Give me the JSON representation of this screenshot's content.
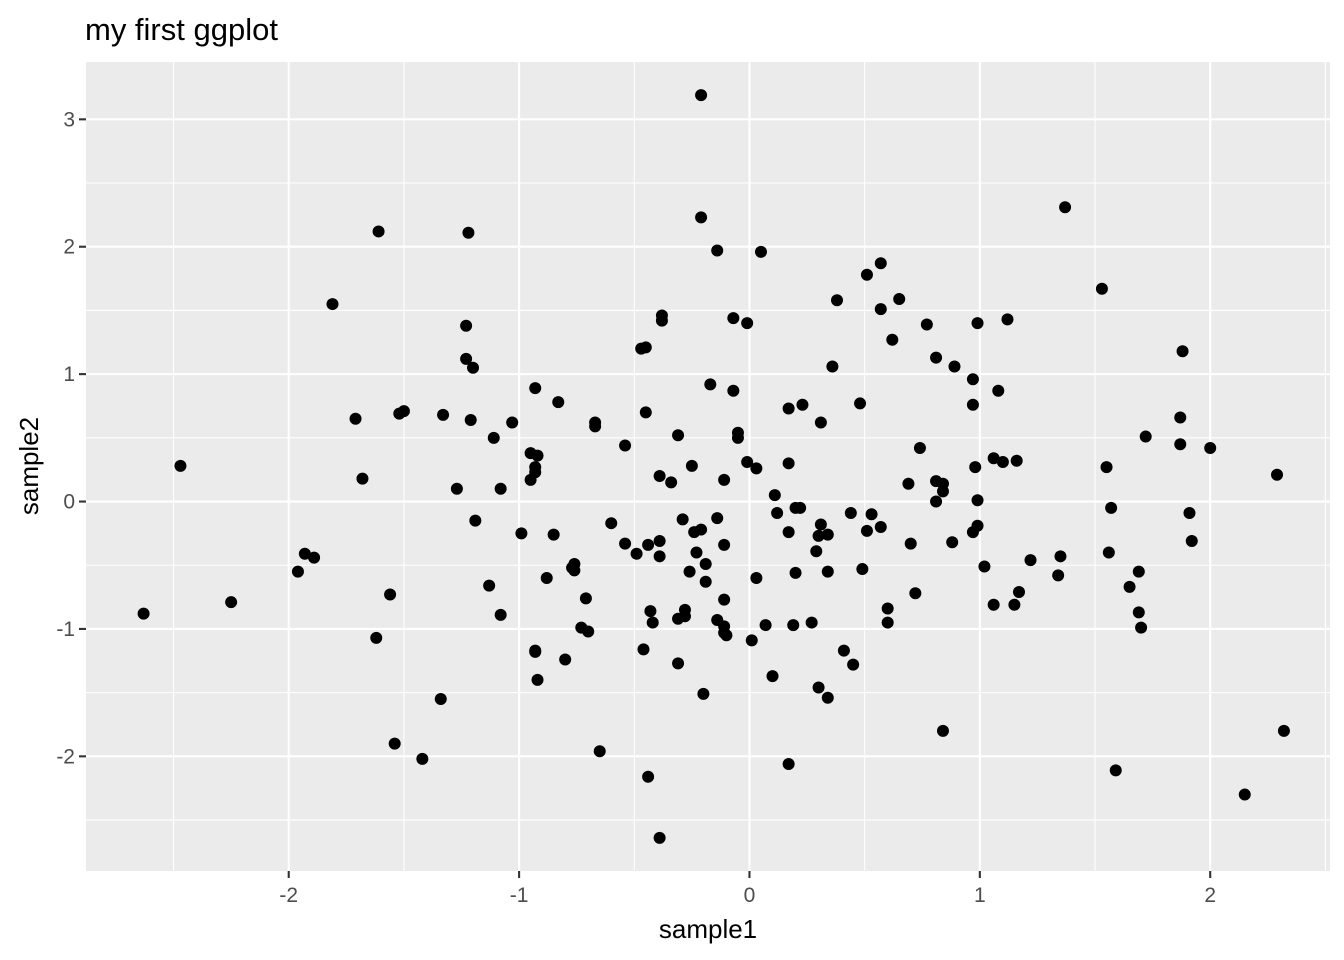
{
  "chart_data": {
    "type": "scatter",
    "title": "my first ggplot",
    "xlabel": "sample1",
    "ylabel": "sample2",
    "xlim": [
      -2.88,
      2.52
    ],
    "ylim": [
      -2.9,
      3.45
    ],
    "x_ticks": [
      -2,
      -1,
      0,
      1,
      2
    ],
    "y_ticks": [
      -2,
      -1,
      0,
      1,
      2,
      3
    ],
    "x_tick_labels": [
      "-2",
      "-1",
      "0",
      "1",
      "2"
    ],
    "y_tick_labels": [
      "-2",
      "-1",
      "0",
      "1",
      "2",
      "3"
    ],
    "x_minor": [
      -2.5,
      -1.5,
      -0.5,
      0.5,
      1.5,
      2.5
    ],
    "y_minor": [
      -2.5,
      -1.5,
      -0.5,
      0.5,
      1.5,
      2.5
    ],
    "grid": true,
    "background": "#ebebeb",
    "point_color": "#000000",
    "points": [
      [
        -0.21,
        3.19
      ],
      [
        -0.21,
        2.23
      ],
      [
        -0.14,
        1.97
      ],
      [
        0.05,
        1.96
      ],
      [
        -1.61,
        2.12
      ],
      [
        -1.22,
        2.11
      ],
      [
        1.37,
        2.31
      ],
      [
        -1.81,
        1.55
      ],
      [
        1.53,
        1.67
      ],
      [
        0.51,
        1.78
      ],
      [
        0.57,
        1.87
      ],
      [
        -0.38,
        1.46
      ],
      [
        -0.38,
        1.42
      ],
      [
        -0.07,
        1.44
      ],
      [
        -0.01,
        1.4
      ],
      [
        0.38,
        1.58
      ],
      [
        0.57,
        1.51
      ],
      [
        0.65,
        1.59
      ],
      [
        1.12,
        1.43
      ],
      [
        0.99,
        1.4
      ],
      [
        0.77,
        1.39
      ],
      [
        -1.23,
        1.38
      ],
      [
        -0.45,
        1.21
      ],
      [
        -0.47,
        1.2
      ],
      [
        0.62,
        1.27
      ],
      [
        -1.23,
        1.12
      ],
      [
        -1.2,
        1.05
      ],
      [
        0.81,
        1.13
      ],
      [
        0.89,
        1.06
      ],
      [
        0.36,
        1.06
      ],
      [
        1.88,
        1.18
      ],
      [
        -0.17,
        0.92
      ],
      [
        -0.07,
        0.87
      ],
      [
        -0.93,
        0.89
      ],
      [
        0.97,
        0.96
      ],
      [
        1.08,
        0.87
      ],
      [
        -0.83,
        0.78
      ],
      [
        -1.71,
        0.65
      ],
      [
        -1.52,
        0.69
      ],
      [
        -1.5,
        0.71
      ],
      [
        -1.33,
        0.68
      ],
      [
        -1.21,
        0.64
      ],
      [
        -1.03,
        0.62
      ],
      [
        -0.45,
        0.7
      ],
      [
        -0.67,
        0.62
      ],
      [
        -0.67,
        0.59
      ],
      [
        0.17,
        0.73
      ],
      [
        0.23,
        0.76
      ],
      [
        0.48,
        0.77
      ],
      [
        0.97,
        0.76
      ],
      [
        1.87,
        0.66
      ],
      [
        0.31,
        0.62
      ],
      [
        -1.11,
        0.5
      ],
      [
        -0.31,
        0.52
      ],
      [
        -0.05,
        0.54
      ],
      [
        -0.05,
        0.5
      ],
      [
        1.72,
        0.51
      ],
      [
        -0.54,
        0.44
      ],
      [
        0.74,
        0.42
      ],
      [
        1.87,
        0.45
      ],
      [
        2.0,
        0.42
      ],
      [
        -0.95,
        0.38
      ],
      [
        -0.92,
        0.36
      ],
      [
        -0.93,
        0.27
      ],
      [
        -0.93,
        0.23
      ],
      [
        -0.95,
        0.17
      ],
      [
        -0.01,
        0.31
      ],
      [
        0.03,
        0.26
      ],
      [
        -0.25,
        0.28
      ],
      [
        0.17,
        0.3
      ],
      [
        1.06,
        0.34
      ],
      [
        1.1,
        0.31
      ],
      [
        1.16,
        0.32
      ],
      [
        0.98,
        0.27
      ],
      [
        1.55,
        0.27
      ],
      [
        -2.47,
        0.28
      ],
      [
        -1.68,
        0.18
      ],
      [
        -0.39,
        0.2
      ],
      [
        -0.34,
        0.15
      ],
      [
        -0.11,
        0.17
      ],
      [
        0.69,
        0.14
      ],
      [
        0.81,
        0.16
      ],
      [
        0.84,
        0.14
      ],
      [
        2.29,
        0.21
      ],
      [
        -1.27,
        0.1
      ],
      [
        -1.08,
        0.1
      ],
      [
        0.84,
        0.08
      ],
      [
        0.11,
        0.05
      ],
      [
        0.81,
        0.0
      ],
      [
        0.99,
        0.01
      ],
      [
        0.2,
        -0.05
      ],
      [
        0.22,
        -0.05
      ],
      [
        1.57,
        -0.05
      ],
      [
        0.12,
        -0.09
      ],
      [
        0.44,
        -0.09
      ],
      [
        0.53,
        -0.1
      ],
      [
        1.91,
        -0.09
      ],
      [
        -1.19,
        -0.15
      ],
      [
        -0.29,
        -0.14
      ],
      [
        -0.14,
        -0.13
      ],
      [
        -0.6,
        -0.17
      ],
      [
        0.17,
        -0.24
      ],
      [
        0.31,
        -0.18
      ],
      [
        0.57,
        -0.2
      ],
      [
        0.51,
        -0.23
      ],
      [
        0.99,
        -0.19
      ],
      [
        0.97,
        -0.24
      ],
      [
        -0.99,
        -0.25
      ],
      [
        -0.85,
        -0.26
      ],
      [
        -0.24,
        -0.24
      ],
      [
        -0.21,
        -0.22
      ],
      [
        0.3,
        -0.27
      ],
      [
        0.34,
        -0.26
      ],
      [
        -0.54,
        -0.33
      ],
      [
        -0.44,
        -0.34
      ],
      [
        -0.39,
        -0.31
      ],
      [
        -0.11,
        -0.34
      ],
      [
        0.7,
        -0.33
      ],
      [
        0.88,
        -0.32
      ],
      [
        1.92,
        -0.31
      ],
      [
        -1.93,
        -0.41
      ],
      [
        -1.89,
        -0.44
      ],
      [
        -0.49,
        -0.41
      ],
      [
        -0.39,
        -0.43
      ],
      [
        -0.23,
        -0.4
      ],
      [
        0.29,
        -0.39
      ],
      [
        1.56,
        -0.4
      ],
      [
        1.22,
        -0.46
      ],
      [
        1.35,
        -0.43
      ],
      [
        -1.96,
        -0.55
      ],
      [
        -0.76,
        -0.49
      ],
      [
        -0.77,
        -0.52
      ],
      [
        -0.76,
        -0.54
      ],
      [
        -0.26,
        -0.55
      ],
      [
        -0.19,
        -0.49
      ],
      [
        0.34,
        -0.55
      ],
      [
        0.49,
        -0.53
      ],
      [
        1.02,
        -0.51
      ],
      [
        1.69,
        -0.55
      ],
      [
        -0.88,
        -0.6
      ],
      [
        -0.19,
        -0.63
      ],
      [
        0.03,
        -0.6
      ],
      [
        0.2,
        -0.56
      ],
      [
        1.34,
        -0.58
      ],
      [
        -1.13,
        -0.66
      ],
      [
        1.65,
        -0.67
      ],
      [
        -1.56,
        -0.73
      ],
      [
        0.72,
        -0.72
      ],
      [
        1.17,
        -0.71
      ],
      [
        -0.71,
        -0.76
      ],
      [
        -0.11,
        -0.77
      ],
      [
        1.06,
        -0.81
      ],
      [
        1.15,
        -0.81
      ],
      [
        -0.43,
        -0.86
      ],
      [
        -0.28,
        -0.85
      ],
      [
        0.6,
        -0.84
      ],
      [
        1.69,
        -0.87
      ],
      [
        -1.08,
        -0.89
      ],
      [
        -0.28,
        -0.9
      ],
      [
        -0.31,
        -0.92
      ],
      [
        -0.14,
        -0.93
      ],
      [
        -0.42,
        -0.95
      ],
      [
        -0.11,
        -0.98
      ],
      [
        0.07,
        -0.97
      ],
      [
        0.19,
        -0.97
      ],
      [
        0.27,
        -0.95
      ],
      [
        0.6,
        -0.95
      ],
      [
        1.7,
        -0.99
      ],
      [
        -0.73,
        -0.99
      ],
      [
        -0.7,
        -1.02
      ],
      [
        -0.11,
        -1.03
      ],
      [
        -0.1,
        -1.05
      ],
      [
        0.01,
        -1.09
      ],
      [
        -1.62,
        -1.07
      ],
      [
        -0.93,
        -1.18
      ],
      [
        -0.93,
        -1.17
      ],
      [
        -0.46,
        -1.16
      ],
      [
        0.41,
        -1.17
      ],
      [
        -0.8,
        -1.24
      ],
      [
        -0.31,
        -1.27
      ],
      [
        0.45,
        -1.28
      ],
      [
        0.1,
        -1.37
      ],
      [
        -0.92,
        -1.4
      ],
      [
        0.3,
        -1.46
      ],
      [
        -0.2,
        -1.51
      ],
      [
        0.34,
        -1.54
      ],
      [
        -1.34,
        -1.55
      ],
      [
        0.84,
        -1.8
      ],
      [
        2.32,
        -1.8
      ],
      [
        -1.54,
        -1.9
      ],
      [
        -1.42,
        -2.02
      ],
      [
        -0.65,
        -1.96
      ],
      [
        0.17,
        -2.06
      ],
      [
        1.59,
        -2.11
      ],
      [
        -0.44,
        -2.16
      ],
      [
        2.15,
        -2.3
      ],
      [
        -0.39,
        -2.64
      ],
      [
        -2.63,
        -0.88
      ],
      [
        -2.25,
        -0.79
      ]
    ]
  }
}
